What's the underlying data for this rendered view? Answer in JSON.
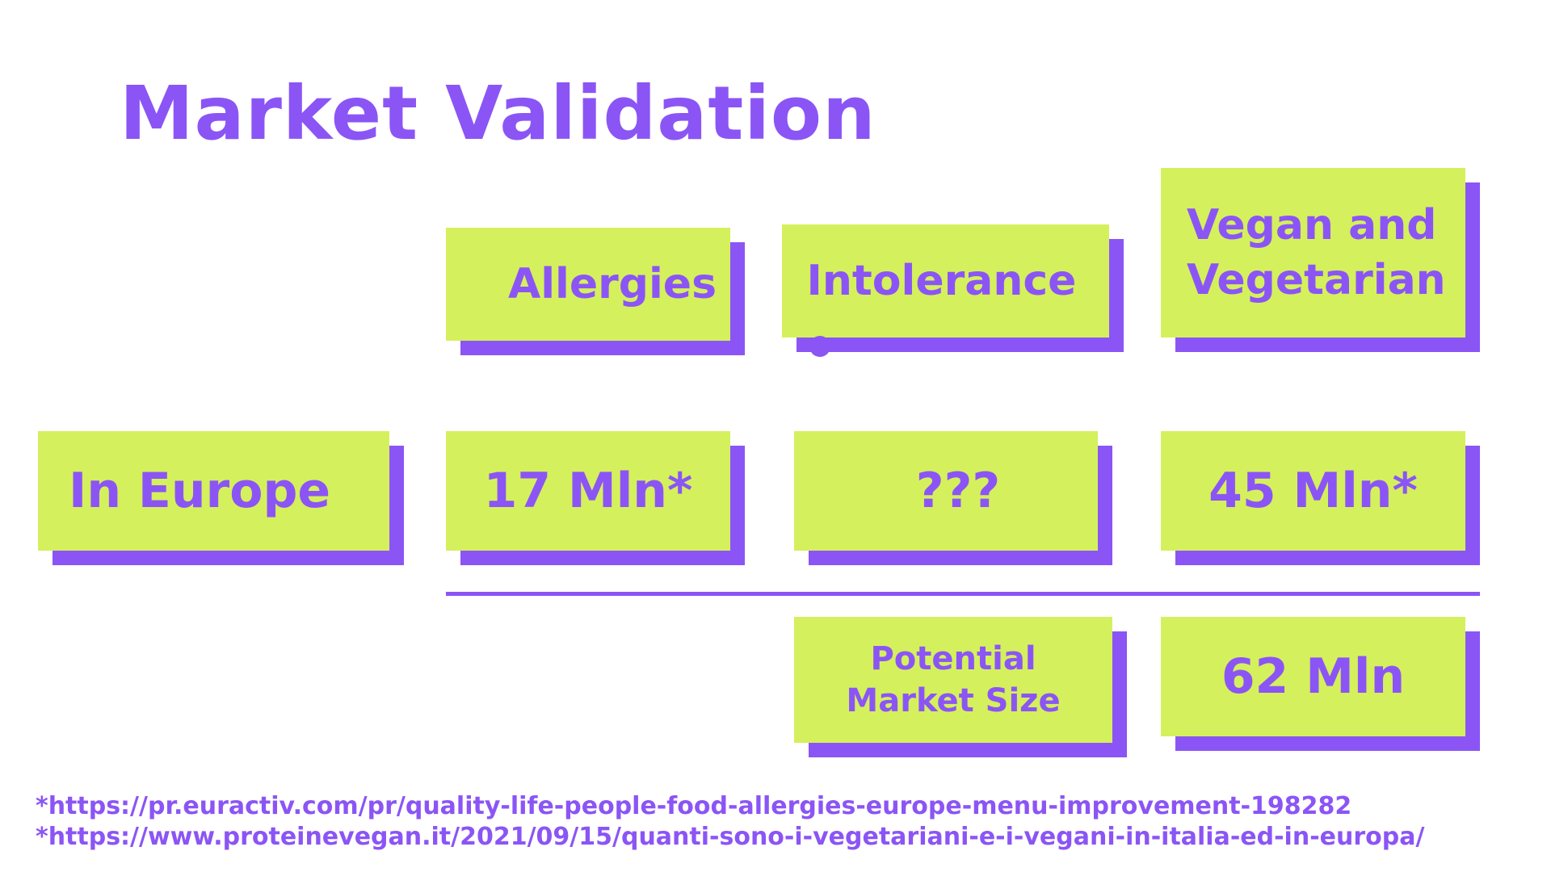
{
  "title": "Market Validation",
  "columns": {
    "allergies": "Allergies",
    "intolerance": "Intolerance",
    "vegan_line1": "Vegan and",
    "vegan_line2": "Vegetarian"
  },
  "row": {
    "label": "In Europe",
    "allergies": "17 Mln*",
    "intolerance": "???",
    "vegan": "45 Mln*"
  },
  "potential": {
    "label_line1": "Potential",
    "label_line2": "Market Size",
    "value": "62 Mln"
  },
  "footnotes": [
    "*https://pr.euractiv.com/pr/quality-life-people-food-allergies-europe-menu-improvement-198282",
    "*https://www.proteinevegan.it/2021/09/15/quanti-sono-i-vegetariani-e-i-vegani-in-italia-ed-in-europa/"
  ],
  "colors": {
    "accent": "#8b55f5",
    "card": "#d5f05d",
    "background": "#ffffff"
  }
}
